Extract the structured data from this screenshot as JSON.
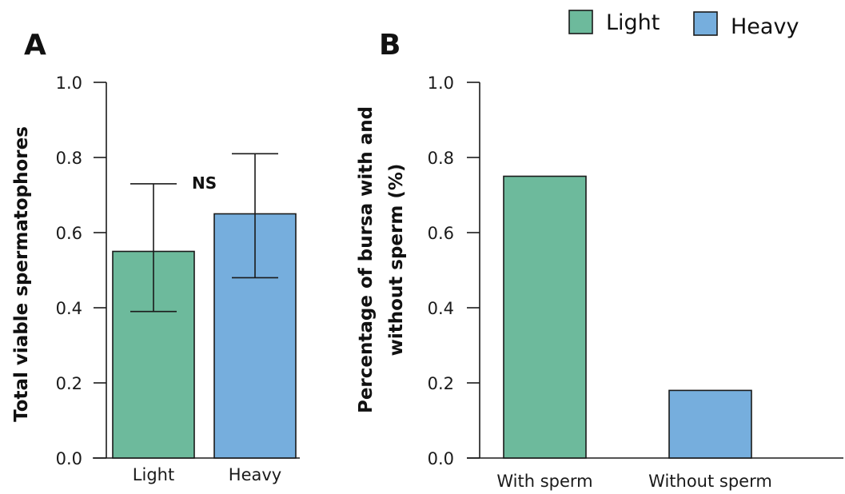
{
  "colors": {
    "light": "#6dba9c",
    "heavy": "#76aedd"
  },
  "legend": [
    {
      "label": "Light",
      "color": "#6dba9c"
    },
    {
      "label": "Heavy",
      "color": "#76aedd"
    }
  ],
  "chart_data": [
    {
      "panel": "A",
      "type": "bar",
      "categories": [
        "Light",
        "Heavy"
      ],
      "values": [
        0.55,
        0.65
      ],
      "error_low": [
        0.39,
        0.48
      ],
      "error_high": [
        0.73,
        0.81
      ],
      "ylabel": "Total viable spermatophores",
      "xlabel": "",
      "ylim": [
        0,
        1.0
      ],
      "yticks": [
        "0.0",
        "0.2",
        "0.4",
        "0.6",
        "0.8",
        "1.0"
      ],
      "annotation": "NS",
      "grid": false
    },
    {
      "panel": "B",
      "type": "bar",
      "categories": [
        "With sperm",
        "Without sperm"
      ],
      "values": [
        0.75,
        0.18
      ],
      "ylabel_lines": [
        "Percentage of bursa with and",
        "without sperm (%)"
      ],
      "xlabel": "",
      "ylim": [
        0,
        1.0
      ],
      "yticks": [
        "0.0",
        "0.2",
        "0.4",
        "0.6",
        "0.8",
        "1.0"
      ],
      "grid": false
    }
  ]
}
